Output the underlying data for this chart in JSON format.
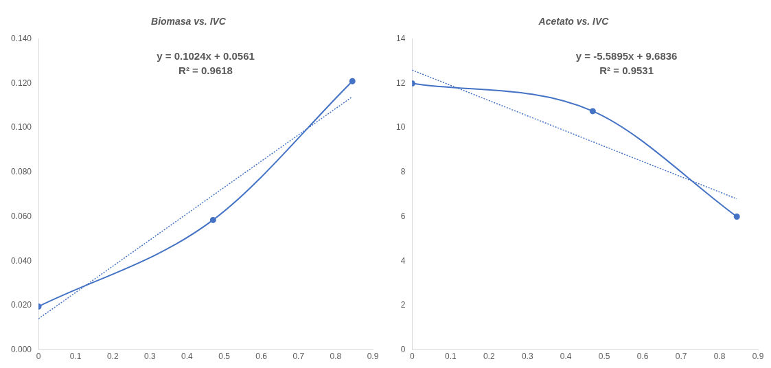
{
  "chart_data": [
    {
      "type": "line",
      "title": "Biomasa vs. IVC",
      "xlim": [
        0,
        0.9
      ],
      "xticks": [
        0,
        0.1,
        0.2,
        0.3,
        0.4,
        0.5,
        0.6,
        0.7,
        0.8,
        0.9
      ],
      "ylim": [
        0,
        0.14
      ],
      "yticks": [
        {
          "value": 0,
          "label": "0.000"
        },
        {
          "value": 0.02,
          "label": "0.020"
        },
        {
          "value": 0.04,
          "label": "0.040"
        },
        {
          "value": 0.06,
          "label": "0.060"
        },
        {
          "value": 0.08,
          "label": "0.080"
        },
        {
          "value": 0.1,
          "label": "0.100"
        },
        {
          "value": 0.12,
          "label": "0.120"
        },
        {
          "value": 0.14,
          "label": "0.140"
        }
      ],
      "series": [
        {
          "color": "#4472c4",
          "x": [
            0,
            0.47,
            0.845
          ],
          "values": [
            0.0195,
            0.0585,
            0.121
          ],
          "marker": "circle",
          "line_style": "solid"
        },
        {
          "color": "#4472c4",
          "x": [
            0,
            0.845
          ],
          "values": [
            0.014,
            0.114
          ],
          "marker": "none",
          "line_style": "dotted"
        }
      ],
      "annotations": [
        "y = 0.1024x + 0.0561",
        "R² = 0.9618"
      ]
    },
    {
      "type": "line",
      "title": "Acetato vs. IVC",
      "xlim": [
        0,
        0.9
      ],
      "xticks": [
        0,
        0.1,
        0.2,
        0.3,
        0.4,
        0.5,
        0.6,
        0.7,
        0.8,
        0.9
      ],
      "ylim": [
        0,
        14
      ],
      "yticks": [
        0,
        2,
        4,
        6,
        8,
        10,
        12,
        14
      ],
      "series": [
        {
          "color": "#4472c4",
          "x": [
            0,
            0.47,
            0.845
          ],
          "values": [
            12.0,
            10.75,
            6.0
          ],
          "marker": "circle",
          "line_style": "solid"
        },
        {
          "color": "#4472c4",
          "x": [
            0,
            0.845
          ],
          "values": [
            12.6,
            6.8
          ],
          "marker": "none",
          "line_style": "dotted"
        }
      ],
      "annotations": [
        "y = -5.5895x + 9.6836",
        "R² = 0.9531"
      ]
    }
  ]
}
